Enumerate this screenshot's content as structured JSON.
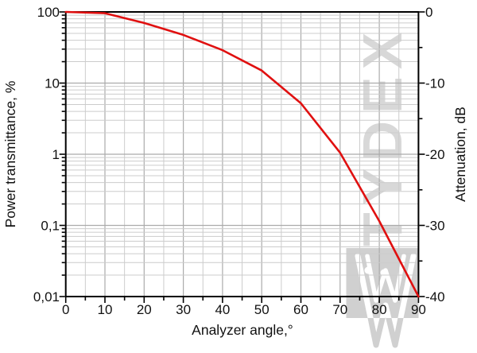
{
  "page": {
    "background": "#ffffff"
  },
  "chart_data": {
    "type": "line",
    "title": "",
    "xlabel": "Analyzer angle,°",
    "ylabel_left": "Power transmittance, %",
    "ylabel_right": "Attenuation, dB",
    "x": [
      0,
      10,
      20,
      30,
      40,
      50,
      60,
      70,
      80,
      90
    ],
    "series": [
      {
        "name": "power_transmittance_percent",
        "color": "#e01010",
        "line_width": 2.6,
        "values": [
          100,
          96,
          70,
          47.5,
          29,
          15,
          5.2,
          1.05,
          0.115,
          0.01
        ]
      }
    ],
    "attenuation_dB_equivalent": [
      0,
      -0.2,
      -1.5,
      -3.2,
      -5.4,
      -8.2,
      -12.8,
      -19.8,
      -29.4,
      -40
    ],
    "axes": {
      "x": {
        "min": 0,
        "max": 90,
        "major_tick_step": 10,
        "minor_tick_step": 5,
        "tick_labels": [
          "0",
          "10",
          "20",
          "30",
          "40",
          "50",
          "60",
          "70",
          "80",
          "90"
        ]
      },
      "y_left": {
        "scale": "log",
        "min": 0.01,
        "max": 100,
        "tick_values": [
          100,
          10,
          1,
          0.1,
          0.01
        ],
        "tick_labels": [
          "100",
          "10",
          "1",
          "0,1",
          "0,01"
        ]
      },
      "y_right": {
        "scale": "linear",
        "min": -40,
        "max": 0,
        "major_tick_step": 10,
        "minor_tick_step": 5,
        "tick_values": [
          0,
          -10,
          -20,
          -30,
          -40
        ],
        "tick_labels": [
          "0",
          "-10",
          "-20",
          "-30",
          "-40"
        ]
      }
    },
    "grid": {
      "visible": true,
      "major_color": "#ababab",
      "minor_color": "#cccccc"
    },
    "legend": "none"
  },
  "watermark": {
    "text": "TYDEX",
    "text_color": "#d8d8d8",
    "logo": "tydex-crystal-w-logo",
    "logo_square_color": "#d0d0d0"
  },
  "colors": {
    "curve": "#e01010",
    "axis": "#000000",
    "background": "#ffffff",
    "text": "#111111"
  }
}
